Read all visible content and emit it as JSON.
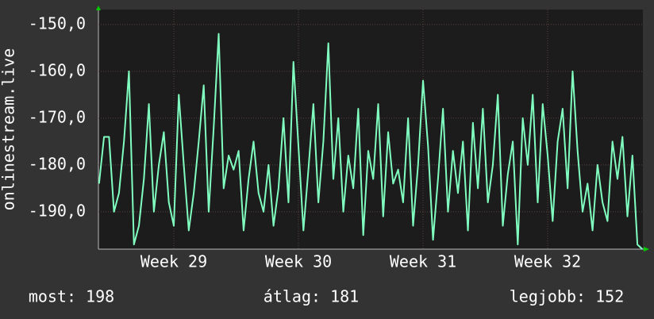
{
  "chart_data": {
    "type": "line",
    "y_label": "onlinestream.live",
    "x": [
      28.4,
      28.44,
      28.48,
      28.52,
      28.56,
      28.6,
      28.64,
      28.68,
      28.72,
      28.76,
      28.8,
      28.84,
      28.88,
      28.92,
      28.96,
      29.0,
      29.04,
      29.08,
      29.12,
      29.16,
      29.2,
      29.24,
      29.28,
      29.32,
      29.36,
      29.4,
      29.44,
      29.48,
      29.52,
      29.56,
      29.6,
      29.64,
      29.68,
      29.72,
      29.76,
      29.8,
      29.84,
      29.88,
      29.92,
      29.96,
      30.0,
      30.04,
      30.08,
      30.12,
      30.16,
      30.2,
      30.24,
      30.28,
      30.32,
      30.36,
      30.4,
      30.44,
      30.48,
      30.52,
      30.56,
      30.6,
      30.64,
      30.68,
      30.72,
      30.76,
      30.8,
      30.84,
      30.88,
      30.92,
      30.96,
      31.0,
      31.04,
      31.08,
      31.12,
      31.16,
      31.2,
      31.24,
      31.28,
      31.32,
      31.36,
      31.4,
      31.44,
      31.48,
      31.52,
      31.56,
      31.6,
      31.64,
      31.68,
      31.72,
      31.76,
      31.8,
      31.84,
      31.88,
      31.92,
      31.96,
      32.0,
      32.04,
      32.08,
      32.12,
      32.16,
      32.2,
      32.24,
      32.28,
      32.32,
      32.36,
      32.4,
      32.44,
      32.48,
      32.52,
      32.56,
      32.6,
      32.64,
      32.68,
      32.72,
      32.76
    ],
    "series": [
      {
        "color": "#80ffc0",
        "values": [
          -184,
          -174,
          -174,
          -190,
          -186,
          -175,
          -160,
          -197,
          -193,
          -183,
          -167,
          -190,
          -180,
          -173,
          -188,
          -193,
          -165,
          -180,
          -194,
          -186,
          -175,
          -163,
          -190,
          -172,
          -152,
          -185,
          -178,
          -181,
          -177,
          -194,
          -183,
          -175,
          -186,
          -190,
          -180,
          -193,
          -185,
          -170,
          -188,
          -158,
          -176,
          -194,
          -181,
          -167,
          -188,
          -175,
          -154,
          -183,
          -170,
          -190,
          -178,
          -185,
          -168,
          -195,
          -177,
          -183,
          -167,
          -191,
          -173,
          -184,
          -181,
          -188,
          -170,
          -193,
          -180,
          -162,
          -176,
          -196,
          -183,
          -168,
          -190,
          -177,
          -186,
          -175,
          -194,
          -171,
          -185,
          -168,
          -188,
          -180,
          -165,
          -193,
          -182,
          -175,
          -197,
          -170,
          -180,
          -165,
          -188,
          -167,
          -178,
          -192,
          -175,
          -168,
          -185,
          -160,
          -177,
          -190,
          -184,
          -194,
          -180,
          -188,
          -192,
          -175,
          -183,
          -174,
          -191,
          -178,
          -197,
          -198
        ]
      }
    ],
    "xlim": [
      28.395,
      32.764
    ],
    "xticks": [
      {
        "value": 29,
        "label": "Week 29"
      },
      {
        "value": 30,
        "label": "Week 30"
      },
      {
        "value": 31,
        "label": "Week 31"
      },
      {
        "value": 32,
        "label": "Week 32"
      }
    ],
    "ylim": [
      -198,
      -146.8
    ],
    "yticks": [
      {
        "value": -190,
        "label": "-190,0"
      },
      {
        "value": -180,
        "label": "-180,0"
      },
      {
        "value": -170,
        "label": "-170,0"
      },
      {
        "value": -160,
        "label": "-160,0"
      },
      {
        "value": -150,
        "label": "-150,0"
      }
    ],
    "grid": true,
    "stats": [
      "most: 198",
      "átlag: 181",
      "legjobb: 152"
    ]
  }
}
